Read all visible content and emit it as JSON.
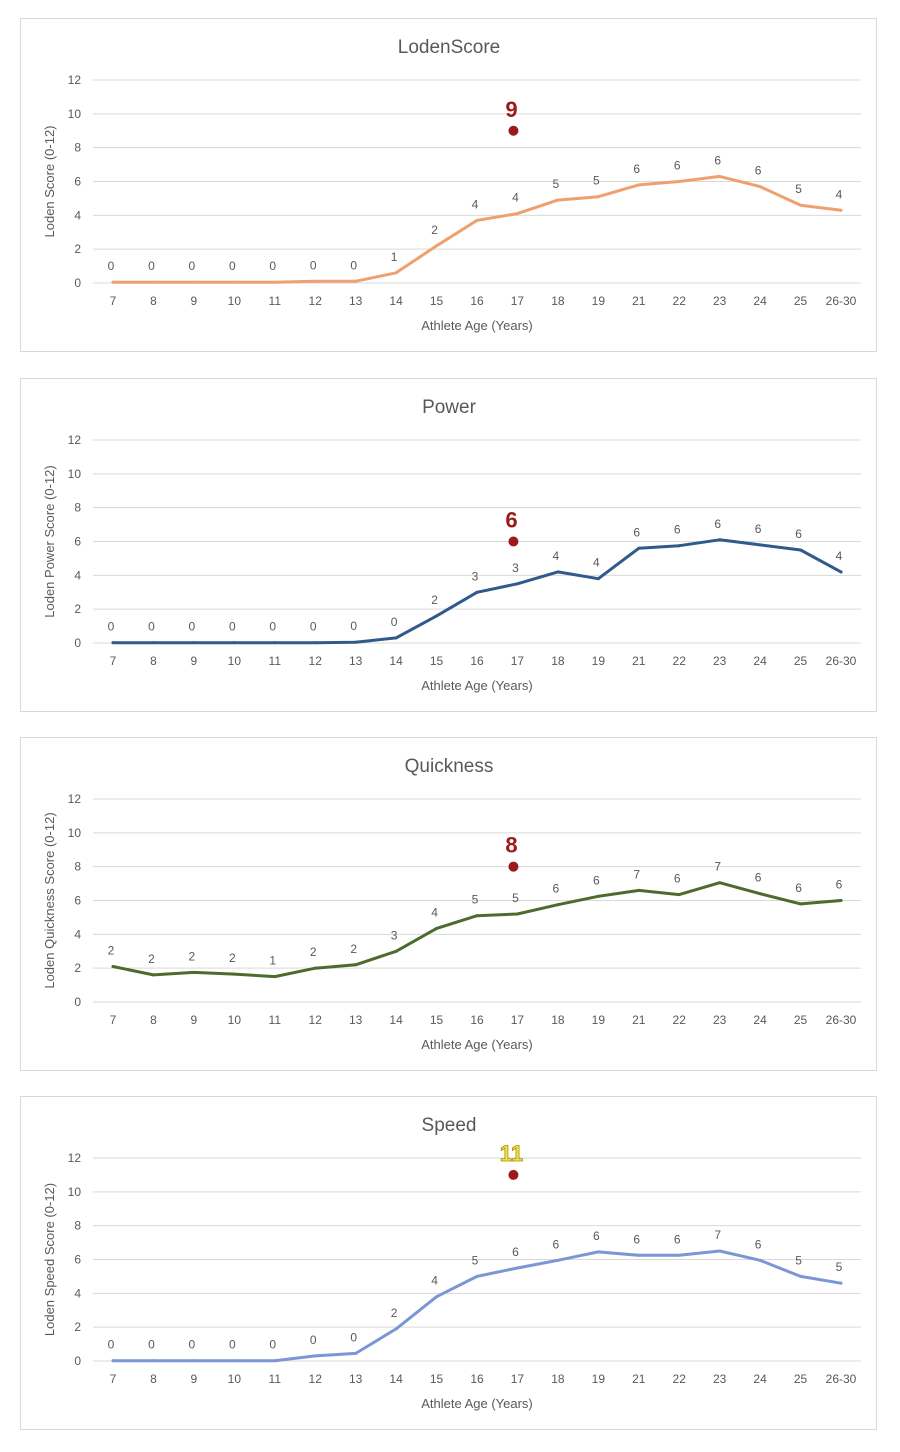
{
  "chart_data": [
    {
      "type": "line",
      "title": "LodenScore",
      "xlabel": "Athlete Age (Years)",
      "ylabel": "Loden  Score (0-12)",
      "ylim": [
        0,
        12
      ],
      "yticks": [
        0,
        2,
        4,
        6,
        8,
        10,
        12
      ],
      "grid": true,
      "color": "#f0a06e",
      "categories": [
        "7",
        "8",
        "9",
        "10",
        "11",
        "12",
        "13",
        "14",
        "15",
        "16",
        "17",
        "18",
        "19",
        "21",
        "22",
        "23",
        "24",
        "25",
        "26-30"
      ],
      "values": [
        0.05,
        0.05,
        0.05,
        0.05,
        0.05,
        0.1,
        0.1,
        0.6,
        2.2,
        3.7,
        4.1,
        4.9,
        5.1,
        5.8,
        6.0,
        6.3,
        5.7,
        4.6,
        4.3
      ],
      "data_labels": [
        "0",
        "0",
        "0",
        "0",
        "0",
        "0",
        "0",
        "1",
        "2",
        "4",
        "4",
        "5",
        "5",
        "6",
        "6",
        "6",
        "6",
        "5",
        "4"
      ],
      "annotation": {
        "label": "9",
        "x": "17",
        "y": 9,
        "color": "#9b1a1a"
      }
    },
    {
      "type": "line",
      "title": "Power",
      "xlabel": "Athlete Age (Years)",
      "ylabel": "Loden Power Score (0-12)",
      "ylim": [
        0,
        12
      ],
      "yticks": [
        0,
        2,
        4,
        6,
        8,
        10,
        12
      ],
      "grid": true,
      "color": "#2f5a8a",
      "categories": [
        "7",
        "8",
        "9",
        "10",
        "11",
        "12",
        "13",
        "14",
        "15",
        "16",
        "17",
        "18",
        "19",
        "21",
        "22",
        "23",
        "24",
        "25",
        "26-30"
      ],
      "values": [
        0.02,
        0.02,
        0.02,
        0.02,
        0.02,
        0.02,
        0.05,
        0.3,
        1.6,
        3.0,
        3.5,
        4.2,
        3.8,
        5.6,
        5.75,
        6.1,
        5.8,
        5.5,
        4.2
      ],
      "data_labels": [
        "0",
        "0",
        "0",
        "0",
        "0",
        "0",
        "0",
        "0",
        "2",
        "3",
        "3",
        "4",
        "4",
        "6",
        "6",
        "6",
        "6",
        "6",
        "4"
      ],
      "annotation": {
        "label": "6",
        "x": "17",
        "y": 6,
        "color": "#9b1a1a"
      }
    },
    {
      "type": "line",
      "title": "Quickness",
      "xlabel": "Athlete Age (Years)",
      "ylabel": "Loden Quickness Score (0-12)",
      "ylim": [
        0,
        12
      ],
      "yticks": [
        0,
        2,
        4,
        6,
        8,
        10,
        12
      ],
      "grid": true,
      "color": "#4e6b2e",
      "categories": [
        "7",
        "8",
        "9",
        "10",
        "11",
        "12",
        "13",
        "14",
        "15",
        "16",
        "17",
        "18",
        "19",
        "21",
        "22",
        "23",
        "24",
        "25",
        "26-30"
      ],
      "values": [
        2.1,
        1.6,
        1.75,
        1.65,
        1.5,
        2.0,
        2.2,
        3.0,
        4.35,
        5.1,
        5.2,
        5.75,
        6.25,
        6.6,
        6.35,
        7.05,
        6.4,
        5.8,
        6.0
      ],
      "data_labels": [
        "2",
        "2",
        "2",
        "2",
        "1",
        "2",
        "2",
        "3",
        "4",
        "5",
        "5",
        "6",
        "6",
        "7",
        "6",
        "7",
        "6",
        "6",
        "6"
      ],
      "annotation": {
        "label": "8",
        "x": "17",
        "y": 8,
        "color": "#9b1a1a"
      }
    },
    {
      "type": "line",
      "title": "Speed",
      "xlabel": "Athlete Age (Years)",
      "ylabel": "Loden Speed Score (0-12)",
      "ylim": [
        0,
        12
      ],
      "yticks": [
        0,
        2,
        4,
        6,
        8,
        10,
        12
      ],
      "grid": true,
      "color": "#7b96d4",
      "categories": [
        "7",
        "8",
        "9",
        "10",
        "11",
        "12",
        "13",
        "14",
        "15",
        "16",
        "17",
        "18",
        "19",
        "21",
        "22",
        "23",
        "24",
        "25",
        "26-30"
      ],
      "values": [
        0.02,
        0.02,
        0.02,
        0.02,
        0.02,
        0.3,
        0.45,
        1.9,
        3.8,
        5.0,
        5.5,
        5.95,
        6.45,
        6.25,
        6.25,
        6.5,
        5.95,
        5.0,
        4.6
      ],
      "data_labels": [
        "0",
        "0",
        "0",
        "0",
        "0",
        "0",
        "0",
        "2",
        "4",
        "5",
        "6",
        "6",
        "6",
        "6",
        "6",
        "7",
        "6",
        "5",
        "5"
      ],
      "annotation": {
        "label": "11",
        "x": "17",
        "y": 11,
        "color": "#9b1a1a",
        "label_color": "#f2e44a"
      }
    }
  ]
}
